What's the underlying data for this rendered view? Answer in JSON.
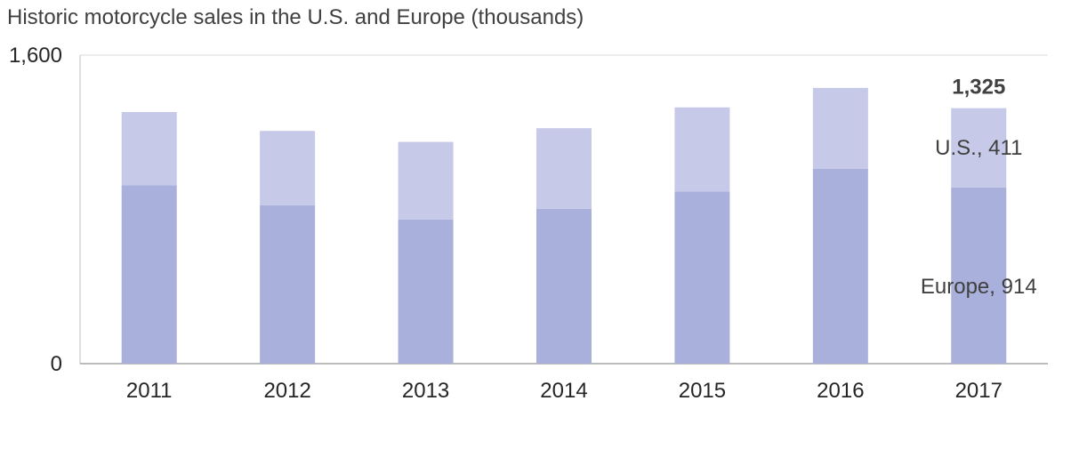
{
  "chart_data": {
    "type": "bar",
    "stacked": true,
    "title": "Historic motorcycle sales in the U.S. and Europe (thousands)",
    "xlabel": "",
    "ylabel": "",
    "ylim": [
      0,
      1600
    ],
    "yticks": [
      "0",
      "1,600"
    ],
    "categories": [
      "2011",
      "2012",
      "2013",
      "2014",
      "2015",
      "2016",
      "2017"
    ],
    "series": [
      {
        "values": [
          925,
          822,
          748,
          803,
          892,
          1010,
          914
        ],
        "color": "#aab0dc"
      },
      {
        "values": [
          380,
          385,
          402,
          418,
          437,
          420,
          411
        ],
        "color": "#c6c9e8"
      }
    ],
    "annotations": {
      "total_label": "1,325",
      "us_label": "U.S., 411",
      "europe_label": "Europe, 914"
    },
    "grid": false,
    "legend": "none"
  }
}
